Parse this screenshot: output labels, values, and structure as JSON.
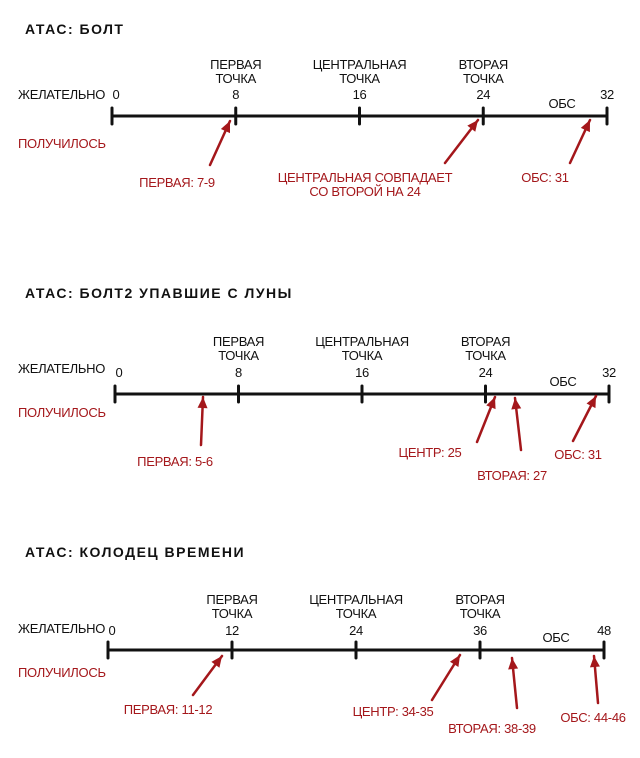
{
  "accent_color": "#a4171b",
  "axis_color": "#111111",
  "sections": [
    {
      "title": "АТАС: БОЛТ",
      "desired_label": "ЖЕЛАТЕЛЬНО",
      "result_label": "ПОЛУЧИЛОСЬ",
      "ticks": [
        "0",
        "8",
        "16",
        "24",
        "32"
      ],
      "points": [
        {
          "line1": "ПЕРВАЯ",
          "line2": "ТОЧКА"
        },
        {
          "line1": "ЦЕНТРАЛЬНАЯ",
          "line2": "ТОЧКА"
        },
        {
          "line1": "ВТОРАЯ",
          "line2": "ТОЧКА"
        }
      ],
      "obs_label": "ОБС",
      "results": [
        {
          "line1": "ПЕРВАЯ: 7-9"
        },
        {
          "line1": "ЦЕНТРАЛЬНАЯ СОВПАДАЕТ",
          "line2": "СО ВТОРОЙ НА 24"
        },
        {
          "line1": "ОБС:  31"
        }
      ]
    },
    {
      "title": "АТАС: БОЛТ2 УПАВШИЕ С ЛУНЫ",
      "desired_label": "ЖЕЛАТЕЛЬНО",
      "result_label": "ПОЛУЧИЛОСЬ",
      "ticks": [
        "0",
        "8",
        "16",
        "24",
        "32"
      ],
      "points": [
        {
          "line1": "ПЕРВАЯ",
          "line2": "ТОЧКА"
        },
        {
          "line1": "ЦЕНТРАЛЬНАЯ",
          "line2": "ТОЧКА"
        },
        {
          "line1": "ВТОРАЯ",
          "line2": "ТОЧКА"
        }
      ],
      "obs_label": "ОБС",
      "results": [
        {
          "line1": "ПЕРВАЯ: 5-6"
        },
        {
          "line1": "ЦЕНТР: 25"
        },
        {
          "line1": "ВТОРАЯ: 27"
        },
        {
          "line1": "ОБС: 31"
        }
      ]
    },
    {
      "title": "АТАС: КОЛОДЕЦ ВРЕМЕНИ",
      "desired_label": "ЖЕЛАТЕЛЬНО",
      "result_label": "ПОЛУЧИЛОСЬ",
      "ticks": [
        "0",
        "12",
        "24",
        "36",
        "48"
      ],
      "points": [
        {
          "line1": "ПЕРВАЯ",
          "line2": "ТОЧКА"
        },
        {
          "line1": "ЦЕНТРАЛЬНАЯ",
          "line2": "ТОЧКА"
        },
        {
          "line1": "ВТОРАЯ",
          "line2": "ТОЧКА"
        }
      ],
      "obs_label": "ОБС",
      "results": [
        {
          "line1": "ПЕРВАЯ: 11-12"
        },
        {
          "line1": "ЦЕНТР: 34-35"
        },
        {
          "line1": "ВТОРАЯ: 38-39"
        },
        {
          "line1": "ОБС: 44-46"
        }
      ]
    }
  ]
}
